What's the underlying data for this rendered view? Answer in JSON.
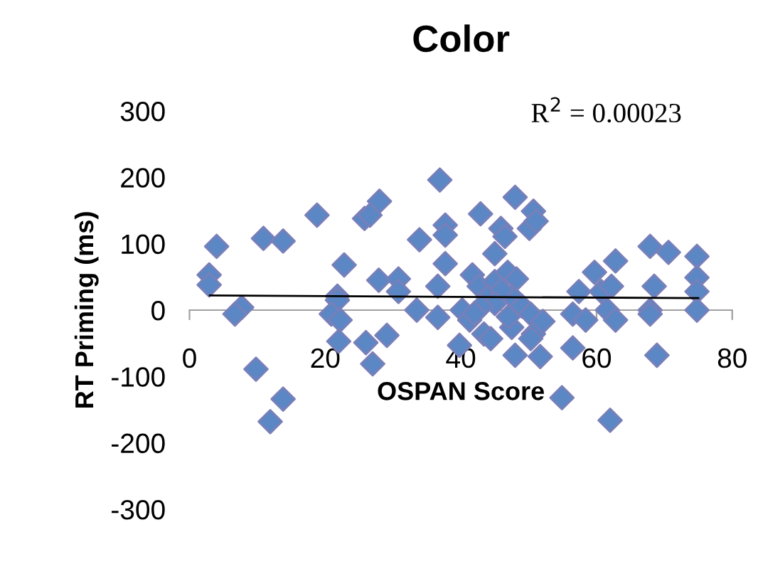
{
  "chart_data": {
    "type": "scatter",
    "title": "Color",
    "xlabel": "OSPAN Score",
    "ylabel": "RT Priming (ms)",
    "annotations": [
      "R$^{2}$ = 0.00023"
    ],
    "xlim": [
      0,
      80
    ],
    "ylim": [
      -300,
      300
    ],
    "xticks": [
      0,
      20,
      40,
      60,
      80
    ],
    "yticks": [
      -300,
      -200,
      -100,
      0,
      100,
      200,
      300
    ],
    "grid": false,
    "legend": false,
    "marker": "diamond",
    "series": [
      {
        "color": "#5b87c5",
        "x": [
          4.0,
          2.9,
          2.9,
          7.7,
          6.7,
          10.9,
          13.8,
          18.8,
          9.8,
          13.8,
          11.9,
          22.8,
          21.8,
          21.8,
          20.9,
          22.2,
          22,
          25.8,
          28,
          27.9,
          26,
          27,
          29.1,
          26.6,
          30.8,
          30.8,
          33.9,
          33.5,
          36.9,
          37.7,
          37.7,
          37.7,
          36.6,
          36.6,
          39.8,
          42.9,
          41.7,
          42.7,
          40.2,
          41.3,
          43.4,
          44.4,
          45,
          45.9,
          46.5,
          45,
          46.9,
          48,
          50.7,
          50.1,
          51.1,
          48.2,
          47.5,
          49,
          47.5,
          50.3,
          50.7,
          52.1,
          48,
          51.7,
          50.3,
          54.9,
          56.5,
          57.4,
          56.5,
          58.4,
          59.7,
          60.7,
          62.2,
          62.8,
          61.6,
          62.8,
          62,
          67.9,
          70.6,
          68.5,
          67.9,
          67.9,
          68.9,
          74.8,
          74.8,
          74.8,
          74.8,
          44,
          46,
          45,
          43,
          47,
          42
        ],
        "values": [
          96,
          53,
          38,
          4,
          -6,
          108,
          104,
          143,
          -89,
          -134,
          -168,
          68,
          21,
          15,
          -6,
          -15,
          -47,
          138,
          164,
          45,
          -49,
          -81,
          -38,
          143,
          47,
          28,
          106,
          0,
          196,
          128,
          113,
          70,
          36,
          -11,
          -53,
          145,
          53,
          36,
          0,
          -15,
          -36,
          -43,
          85,
          123,
          111,
          43,
          57,
          170,
          149,
          123,
          134,
          47,
          21,
          6,
          -26,
          -6,
          -36,
          -17,
          -68,
          -70,
          -43,
          -132,
          -57,
          28,
          -6,
          -15,
          57,
          28,
          36,
          74,
          0,
          -15,
          -166,
          96,
          87,
          36,
          0,
          -6,
          -68,
          81,
          49,
          28,
          0,
          20,
          30,
          10,
          5,
          -10,
          -5
        ]
      },
      {
        "type": "line",
        "color": "#000000",
        "marker": "none",
        "x": [
          3,
          75
        ],
        "values": [
          22,
          18
        ]
      }
    ]
  }
}
